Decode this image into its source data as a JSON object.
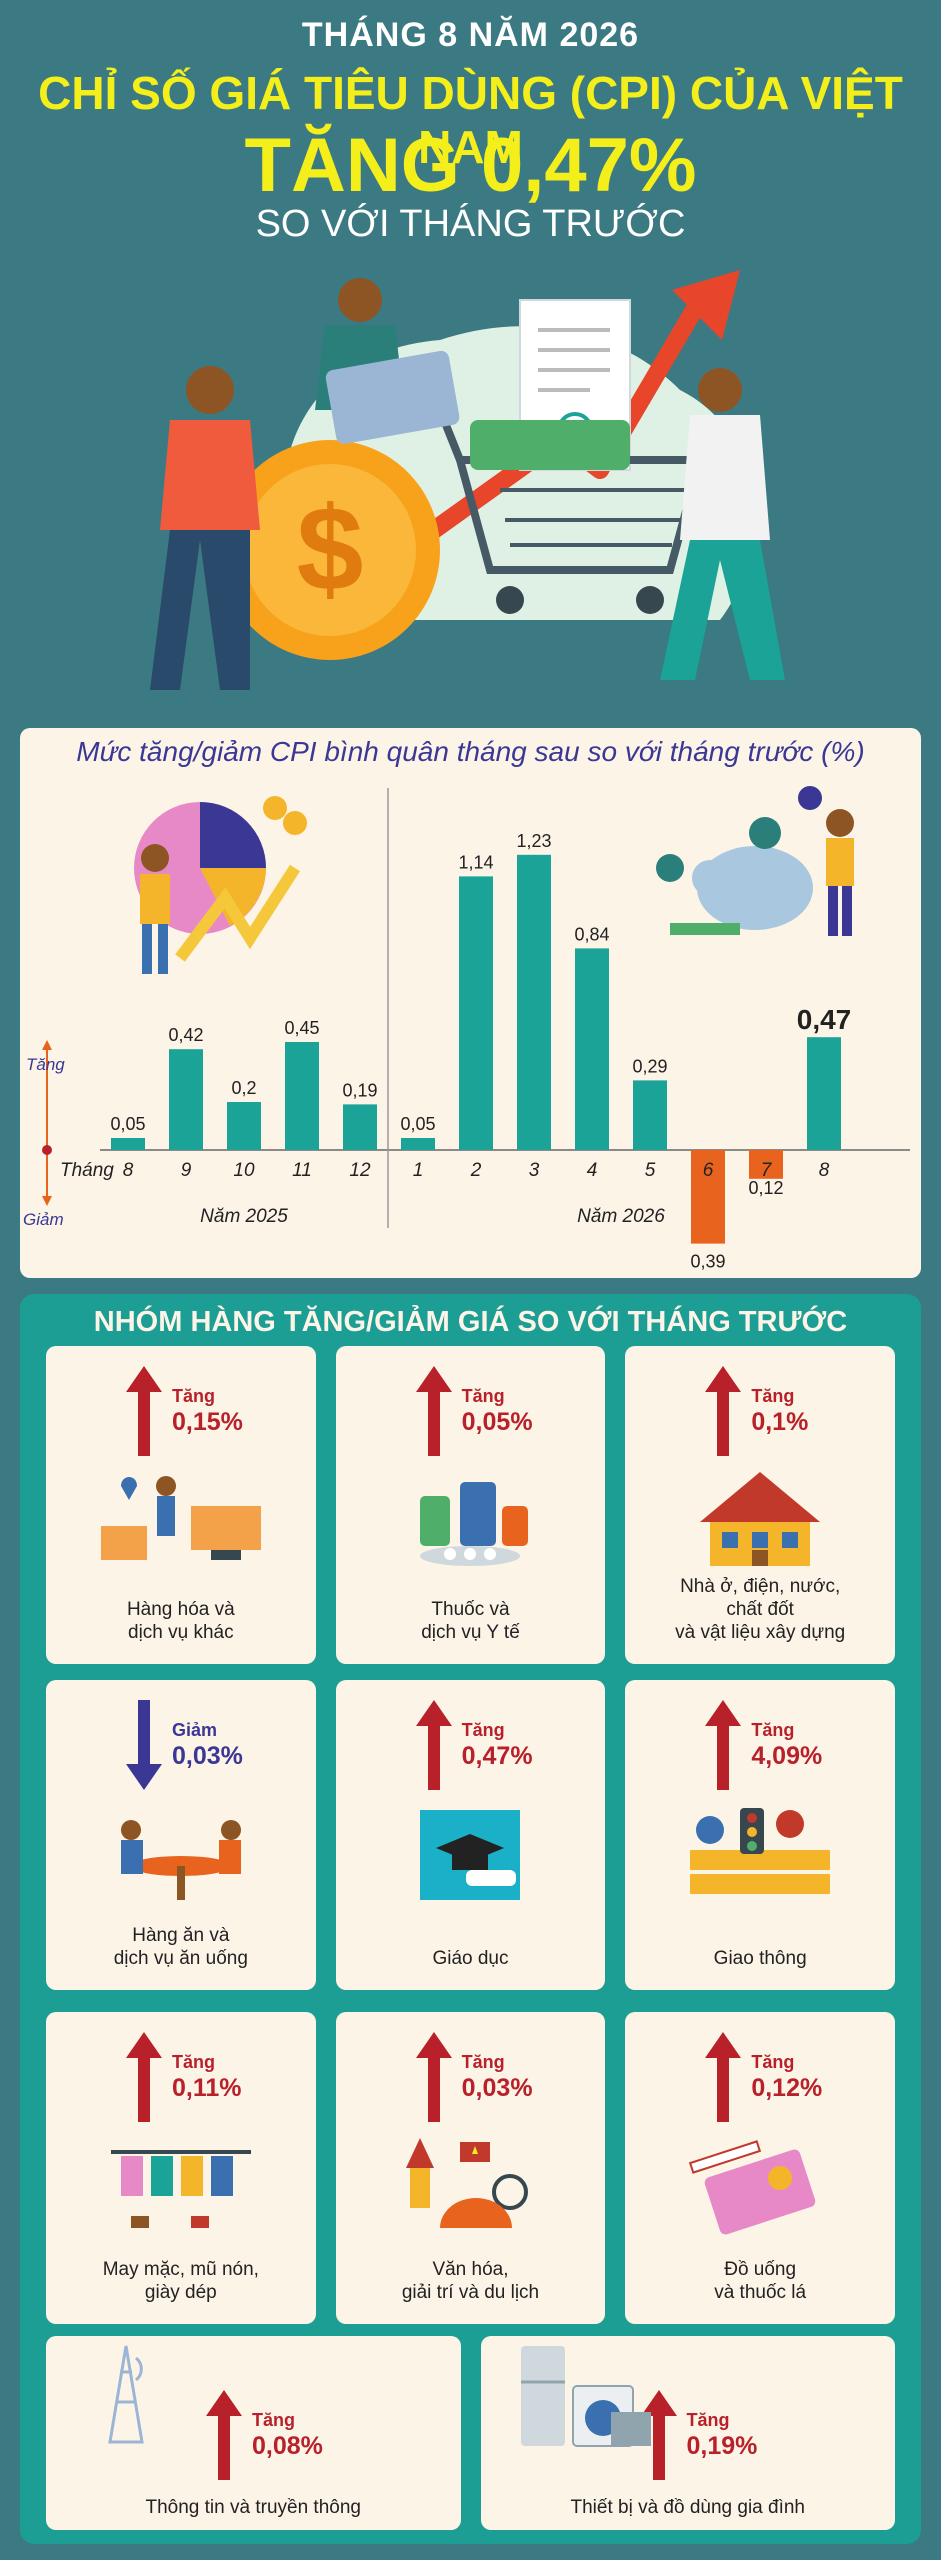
{
  "header": {
    "month": "THÁNG 8 NĂM 2026",
    "title": "CHỈ SỐ GIÁ TIÊU DÙNG (CPI) CỦA VIỆT NAM",
    "headline": "TĂNG 0,47%",
    "subtitle": "SO VỚI THÁNG TRƯỚC"
  },
  "colors": {
    "background": "#3b7a82",
    "accent_yellow": "#f4ef1a",
    "bar_up": "#1aa396",
    "bar_down": "#e8641e",
    "arrow_up": "#b8202a",
    "arrow_down": "#3a3894",
    "card": "#fdf4e8"
  },
  "chart_data": {
    "type": "bar",
    "title": "Mức tăng/giảm CPI bình quân tháng sau so với tháng trước (%)",
    "legend_up": "Tăng",
    "legend_down": "Giảm",
    "month_axis_prefix": "Tháng",
    "groups": [
      {
        "label": "Năm 2025",
        "categories": [
          "8",
          "9",
          "10",
          "11",
          "12"
        ],
        "values": [
          0.05,
          0.42,
          0.2,
          0.45,
          0.19
        ],
        "value_labels": [
          "0,05",
          "0,42",
          "0,2",
          "0,45",
          "0,19"
        ]
      },
      {
        "label": "Năm 2026",
        "categories": [
          "1",
          "2",
          "3",
          "4",
          "5",
          "6",
          "7",
          "8"
        ],
        "values": [
          0.05,
          1.14,
          1.23,
          0.84,
          0.29,
          -0.39,
          -0.12,
          0.47
        ],
        "value_labels": [
          "0,05",
          "1,14",
          "1,23",
          "0,84",
          "0,29",
          "0,39",
          "0,12",
          "0,47"
        ]
      }
    ],
    "ylim": [
      -0.45,
      1.3
    ],
    "grid": false
  },
  "groups_section": {
    "title": "NHÓM HÀNG TĂNG/GIẢM GIÁ SO VỚI THÁNG TRƯỚC",
    "items": [
      {
        "direction": "up",
        "dir_label": "Tăng",
        "value": "0,15%",
        "label_lines": [
          "Hàng hóa và",
          "dịch vụ khác"
        ],
        "icon": "delivery-icon"
      },
      {
        "direction": "up",
        "dir_label": "Tăng",
        "value": "0,05%",
        "label_lines": [
          "Thuốc và",
          "dịch vụ Y tế"
        ],
        "icon": "medicine-icon"
      },
      {
        "direction": "up",
        "dir_label": "Tăng",
        "value": "0,1%",
        "label_lines": [
          "Nhà ở, điện, nước,",
          "chất đốt",
          "và vật liệu xây dựng"
        ],
        "icon": "house-icon"
      },
      {
        "direction": "down",
        "dir_label": "Giảm",
        "value": "0,03%",
        "label_lines": [
          "Hàng ăn và",
          "dịch vụ ăn uống"
        ],
        "icon": "dining-icon"
      },
      {
        "direction": "up",
        "dir_label": "Tăng",
        "value": "0,47%",
        "label_lines": [
          "Giáo dục"
        ],
        "icon": "graduation-icon"
      },
      {
        "direction": "up",
        "dir_label": "Tăng",
        "value": "4,09%",
        "label_lines": [
          "Giao thông"
        ],
        "icon": "traffic-icon"
      },
      {
        "direction": "up",
        "dir_label": "Tăng",
        "value": "0,11%",
        "label_lines": [
          "May mặc, mũ nón,",
          "giày dép"
        ],
        "icon": "clothing-icon"
      },
      {
        "direction": "up",
        "dir_label": "Tăng",
        "value": "0,03%",
        "label_lines": [
          "Văn hóa,",
          "giải trí và du lịch"
        ],
        "icon": "culture-icon"
      },
      {
        "direction": "up",
        "dir_label": "Tăng",
        "value": "0,12%",
        "label_lines": [
          "Đồ uống",
          "và thuốc lá"
        ],
        "icon": "cigarette-icon"
      },
      {
        "direction": "up",
        "dir_label": "Tăng",
        "value": "0,08%",
        "label_lines": [
          "Thông tin và truyền thông"
        ],
        "icon": "tower-icon"
      },
      {
        "direction": "up",
        "dir_label": "Tăng",
        "value": "0,19%",
        "label_lines": [
          "Thiết bị và đồ dùng gia đình"
        ],
        "icon": "appliance-icon"
      }
    ]
  }
}
